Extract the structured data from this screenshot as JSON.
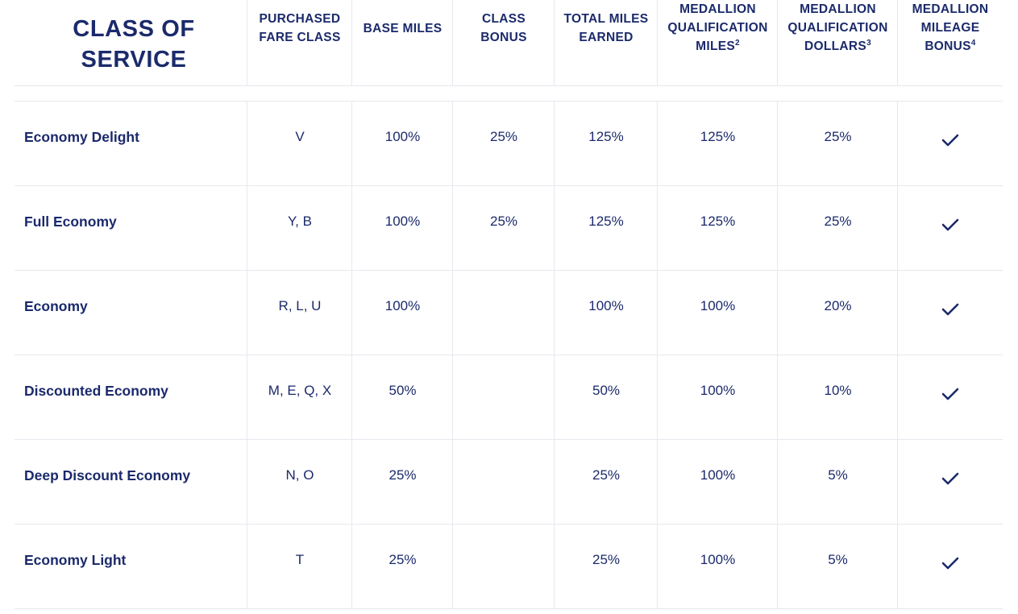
{
  "header": {
    "title": "CLASS OF SERVICE",
    "columns": [
      {
        "lines": [
          "PURCHASED",
          "FARE CLASS"
        ],
        "sup": ""
      },
      {
        "lines": [
          "BASE MILES"
        ],
        "sup": ""
      },
      {
        "lines": [
          "CLASS",
          "BONUS"
        ],
        "sup": ""
      },
      {
        "lines": [
          "TOTAL MILES",
          "EARNED"
        ],
        "sup": ""
      },
      {
        "lines": [
          "MEDALLION",
          "QUALIFICATION",
          "MILES"
        ],
        "sup": "2"
      },
      {
        "lines": [
          "MEDALLION",
          "QUALIFICATION",
          "DOLLARS"
        ],
        "sup": "3"
      },
      {
        "lines": [
          "MEDALLION",
          "MILEAGE",
          "BONUS"
        ],
        "sup": "4"
      }
    ]
  },
  "rows": [
    {
      "name": "Economy Delight",
      "fare_class": "V",
      "base_miles": "100%",
      "class_bonus": "25%",
      "total_miles": "125%",
      "mqm": "125%",
      "mqd": "25%",
      "mileage_bonus": true
    },
    {
      "name": "Full Economy",
      "fare_class": "Y, B",
      "base_miles": "100%",
      "class_bonus": "25%",
      "total_miles": "125%",
      "mqm": "125%",
      "mqd": "25%",
      "mileage_bonus": true
    },
    {
      "name": "Economy",
      "fare_class": "R, L, U",
      "base_miles": "100%",
      "class_bonus": "",
      "total_miles": "100%",
      "mqm": "100%",
      "mqd": "20%",
      "mileage_bonus": true
    },
    {
      "name": "Discounted Economy",
      "fare_class": "M, E, Q, X",
      "base_miles": "50%",
      "class_bonus": "",
      "total_miles": "50%",
      "mqm": "100%",
      "mqd": "10%",
      "mileage_bonus": true
    },
    {
      "name": "Deep Discount Economy",
      "fare_class": "N, O",
      "base_miles": "25%",
      "class_bonus": "",
      "total_miles": "25%",
      "mqm": "100%",
      "mqd": "5%",
      "mileage_bonus": true
    },
    {
      "name": "Economy Light",
      "fare_class": "T",
      "base_miles": "25%",
      "class_bonus": "",
      "total_miles": "25%",
      "mqm": "100%",
      "mqd": "5%",
      "mileage_bonus": true
    }
  ],
  "icons": {
    "check": "check-icon"
  },
  "colors": {
    "text": "#1b2a6b",
    "divider": "#e6e8ee"
  }
}
